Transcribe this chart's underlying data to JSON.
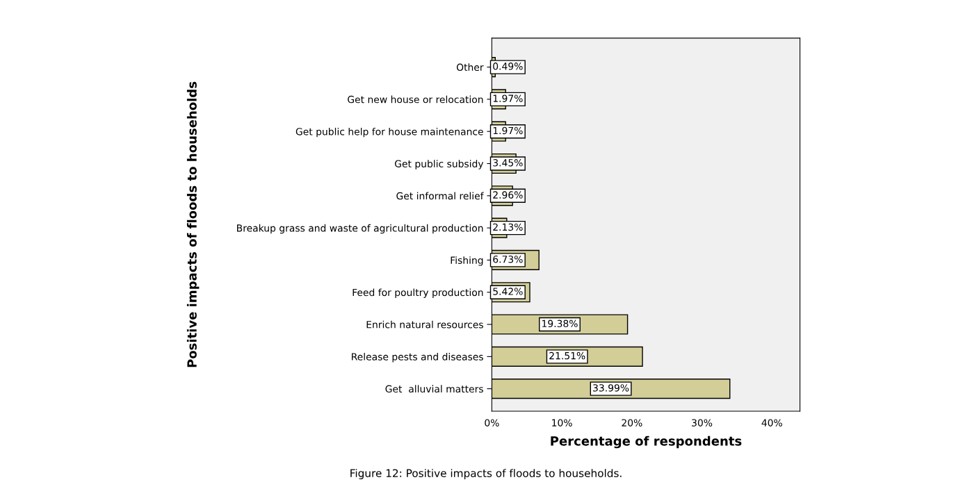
{
  "chart_data": {
    "type": "bar",
    "orientation": "horizontal",
    "categories": [
      "Other",
      "Get new house or relocation",
      "Get public help for house maintenance",
      "Get public subsidy",
      "Get informal relief",
      "Breakup grass and waste of agricultural production",
      "Fishing",
      "Feed for poultry production",
      "Enrich natural resources",
      "Release pests and diseases",
      "Get  alluvial matters"
    ],
    "values": [
      0.49,
      1.97,
      1.97,
      3.45,
      2.96,
      2.13,
      6.73,
      5.42,
      19.38,
      21.51,
      33.99
    ],
    "value_labels": [
      "0.49%",
      "1.97%",
      "1.97%",
      "3.45%",
      "2.96%",
      "2.13%",
      "6.73%",
      "5.42%",
      "19.38%",
      "21.51%",
      "33.99%"
    ],
    "color": "#d3ce98",
    "xlim": [
      0,
      44
    ],
    "xticks": [
      {
        "value": 0,
        "label": "0%"
      },
      {
        "value": 10,
        "label": "10%"
      },
      {
        "value": 20,
        "label": "20%"
      },
      {
        "value": 30,
        "label": "30%"
      },
      {
        "value": 40,
        "label": "40%"
      }
    ],
    "xlabel": "Percentage of respondents",
    "ylabel": "Positive impacts of floods to households",
    "annotations": [
      "Figure 12: Positive impacts of floods to households."
    ],
    "grid": false,
    "legend": false
  }
}
